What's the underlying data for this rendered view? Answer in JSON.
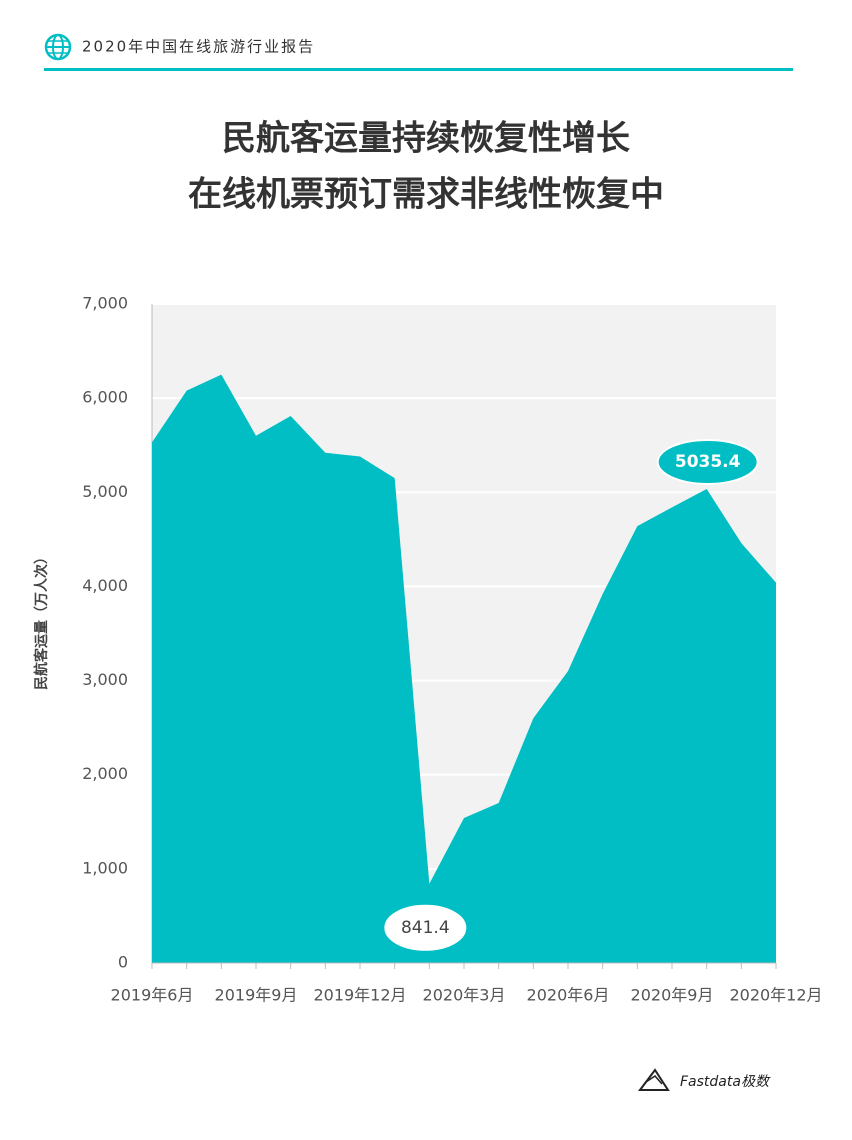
{
  "header": {
    "title": "2020年中国在线旅游行业报告"
  },
  "footer": {
    "brand": "Fastdata极数"
  },
  "chart_data": {
    "type": "area",
    "title": [
      "民航客运量持续恢复性增长",
      "在线机票预订需求非线性恢复中"
    ],
    "y_label": "民航客运量（万人次）",
    "categories": [
      "2019年6月",
      null,
      null,
      "2019年9月",
      null,
      null,
      "2019年12月",
      null,
      null,
      "2020年3月",
      null,
      null,
      "2020年6月",
      null,
      null,
      "2020年9月",
      null,
      null,
      "2020年12月"
    ],
    "series": [
      {
        "name": "民航客运量",
        "color": "#00bec3",
        "values": [
          5530,
          6080,
          6250,
          5600,
          5810,
          5420,
          5380,
          5150,
          841.4,
          1540,
          1700,
          2600,
          3100,
          3920,
          4640,
          4840,
          5035.4,
          4460,
          4040
        ]
      }
    ],
    "annotated": [
      8,
      16
    ],
    "ylim": [
      0,
      7000
    ],
    "yticks": [
      0,
      {
        "value": 1000,
        "label": "1,000"
      },
      {
        "value": 2000,
        "label": "2,000"
      },
      {
        "value": 3000,
        "label": "3,000"
      },
      {
        "value": 4000,
        "label": "4,000"
      },
      {
        "value": 5000,
        "label": "5,000"
      },
      {
        "value": 6000,
        "label": "6,000"
      },
      {
        "value": 7000,
        "label": "7,000"
      }
    ],
    "grid": true
  }
}
